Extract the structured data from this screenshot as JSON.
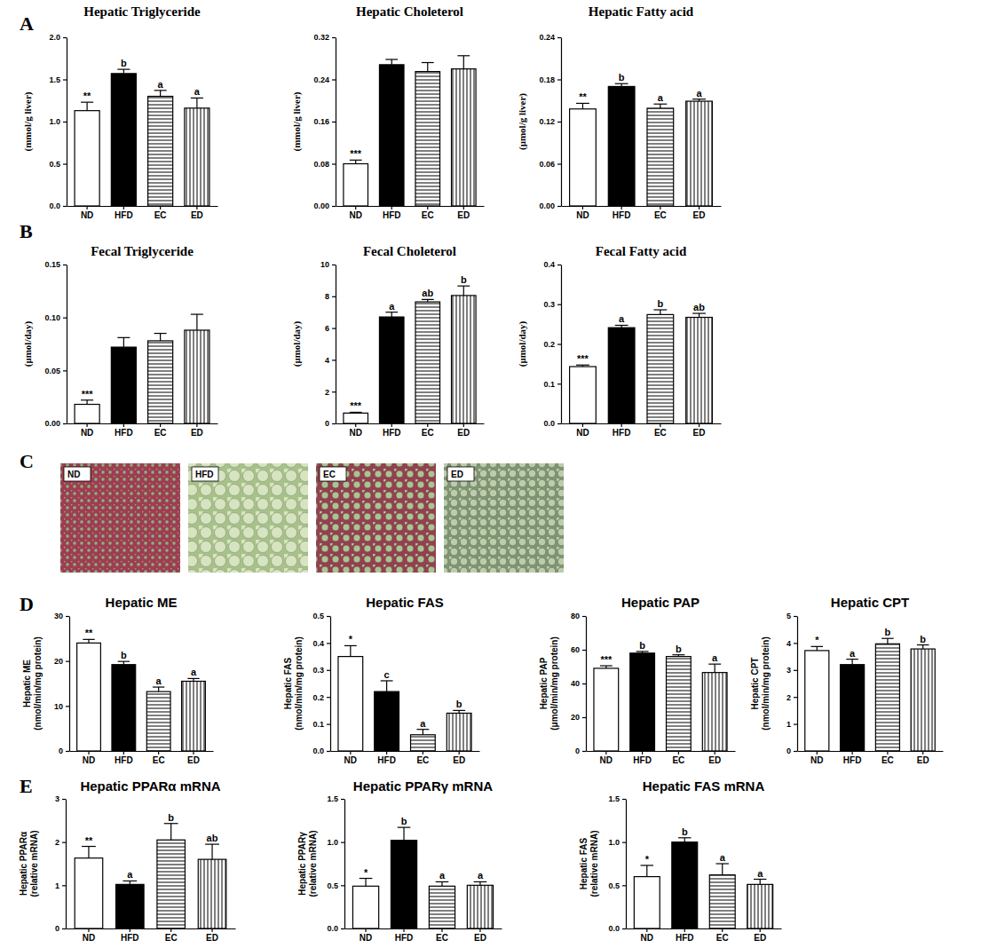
{
  "panels": [
    "A",
    "B",
    "C",
    "D",
    "E"
  ],
  "histology": {
    "labels": [
      "ND",
      "HFD",
      "EC",
      "ED"
    ]
  },
  "chart_data": [
    {
      "type": "bar",
      "title": "Hepatic Triglyceride",
      "ylabel": [
        "(mmol/g liver)"
      ],
      "categories": [
        "ND",
        "HFD",
        "EC",
        "ED"
      ],
      "values": [
        1.13,
        1.57,
        1.3,
        1.16
      ],
      "errors": [
        0.1,
        0.05,
        0.07,
        0.12
      ],
      "significance": [
        "**",
        "b",
        "a",
        "a"
      ],
      "colors": [
        "#ffffff",
        "#000000",
        "#ffffff",
        "#ffffff"
      ],
      "ylim": [
        0,
        2
      ],
      "yticks": [
        {
          "value": 0,
          "label": "0.0"
        },
        {
          "value": 0.5,
          "label": "0.5"
        },
        {
          "value": 1,
          "label": "1.0"
        },
        {
          "value": 1.5,
          "label": "1.5"
        },
        {
          "value": 2,
          "label": "2.0"
        }
      ]
    },
    {
      "type": "bar",
      "title": "Hepatic Choleterol",
      "ylabel": [
        "(mmol/g liver)"
      ],
      "categories": [
        "ND",
        "HFD",
        "EC",
        "ED"
      ],
      "values": [
        0.08,
        0.268,
        0.255,
        0.26
      ],
      "errors": [
        0.007,
        0.01,
        0.017,
        0.025
      ],
      "significance": [
        "***",
        null,
        null,
        null
      ],
      "colors": [
        "#ffffff",
        "#000000",
        "#ffffff",
        "#ffffff"
      ],
      "ylim": [
        0,
        0.32
      ],
      "yticks": [
        {
          "value": 0,
          "label": "0.00"
        },
        {
          "value": 0.08,
          "label": "0.08"
        },
        {
          "value": 0.16,
          "label": "0.16"
        },
        {
          "value": 0.24,
          "label": "0.24"
        },
        {
          "value": 0.32,
          "label": "0.32"
        }
      ]
    },
    {
      "type": "bar",
      "title": "Hepatic Fatty acid",
      "ylabel": [
        "(μmol/g liver)"
      ],
      "categories": [
        "ND",
        "HFD",
        "EC",
        "ED"
      ],
      "values": [
        0.138,
        0.17,
        0.139,
        0.149
      ],
      "errors": [
        0.008,
        0.004,
        0.006,
        0.003
      ],
      "significance": [
        "**",
        "b",
        "a",
        "a"
      ],
      "colors": [
        "#ffffff",
        "#000000",
        "#ffffff",
        "#ffffff"
      ],
      "ylim": [
        0,
        0.24
      ],
      "yticks": [
        {
          "value": 0,
          "label": "0.00"
        },
        {
          "value": 0.06,
          "label": "0.06"
        },
        {
          "value": 0.12,
          "label": "0.12"
        },
        {
          "value": 0.18,
          "label": "0.18"
        },
        {
          "value": 0.24,
          "label": "0.24"
        }
      ]
    },
    {
      "type": "bar",
      "title": "Fecal Triglyceride",
      "ylabel": [
        "(μmol/day)"
      ],
      "categories": [
        "ND",
        "HFD",
        "EC",
        "ED"
      ],
      "values": [
        0.018,
        0.072,
        0.078,
        0.088
      ],
      "errors": [
        0.004,
        0.009,
        0.007,
        0.015
      ],
      "significance": [
        "***",
        null,
        null,
        null
      ],
      "colors": [
        "#ffffff",
        "#000000",
        "#ffffff",
        "#ffffff"
      ],
      "ylim": [
        0,
        0.15
      ],
      "yticks": [
        {
          "value": 0,
          "label": "0.00"
        },
        {
          "value": 0.05,
          "label": "0.05"
        },
        {
          "value": 0.1,
          "label": "0.10"
        },
        {
          "value": 0.15,
          "label": "0.15"
        }
      ]
    },
    {
      "type": "bar",
      "title": "Fecal Choleterol",
      "ylabel": [
        "(μmol/day)"
      ],
      "categories": [
        "ND",
        "HFD",
        "EC",
        "ED"
      ],
      "values": [
        0.65,
        6.7,
        7.65,
        8.05
      ],
      "errors": [
        0.05,
        0.3,
        0.15,
        0.6
      ],
      "significance": [
        "***",
        "a",
        "ab",
        "b"
      ],
      "colors": [
        "#ffffff",
        "#000000",
        "#ffffff",
        "#ffffff"
      ],
      "ylim": [
        0,
        10
      ],
      "yticks": [
        0,
        2,
        4,
        6,
        8,
        10
      ]
    },
    {
      "type": "bar",
      "title": "Fecal Fatty acid",
      "ylabel": [
        "(μmol/day)"
      ],
      "categories": [
        "ND",
        "HFD",
        "EC",
        "ED"
      ],
      "values": [
        0.143,
        0.241,
        0.274,
        0.267
      ],
      "errors": [
        0.004,
        0.006,
        0.012,
        0.01
      ],
      "significance": [
        "***",
        "a",
        "b",
        "ab"
      ],
      "colors": [
        "#ffffff",
        "#000000",
        "#ffffff",
        "#ffffff"
      ],
      "ylim": [
        0,
        0.4
      ],
      "yticks": [
        {
          "value": 0,
          "label": "0.0"
        },
        {
          "value": 0.1,
          "label": "0.1"
        },
        {
          "value": 0.2,
          "label": "0.2"
        },
        {
          "value": 0.3,
          "label": "0.3"
        },
        {
          "value": 0.4,
          "label": "0.4"
        }
      ]
    },
    {
      "type": "bar",
      "title": "Hepatic ME",
      "ylabel": [
        "Hepatic ME",
        "(nmol/min/mg protein)"
      ],
      "categories": [
        "ND",
        "HFD",
        "EC",
        "ED"
      ],
      "values": [
        24,
        19.2,
        13.2,
        15.5
      ],
      "errors": [
        0.8,
        0.7,
        1,
        0.6
      ],
      "significance": [
        "**",
        "b",
        "a",
        "a"
      ],
      "colors": [
        "#ffffff",
        "#000000",
        "#ffffff",
        "#ffffff"
      ],
      "ylim": [
        0,
        30
      ],
      "yticks": [
        0,
        10,
        20,
        30
      ]
    },
    {
      "type": "bar",
      "title": "Hepatic FAS",
      "ylabel": [
        "Hepatic FAS",
        "(nmol/min/mg protein)"
      ],
      "categories": [
        "ND",
        "HFD",
        "EC",
        "ED"
      ],
      "values": [
        0.35,
        0.22,
        0.06,
        0.14
      ],
      "errors": [
        0.04,
        0.04,
        0.02,
        0.01
      ],
      "significance": [
        "*",
        "c",
        "a",
        "b"
      ],
      "colors": [
        "#ffffff",
        "#000000",
        "#ffffff",
        "#ffffff"
      ],
      "ylim": [
        0,
        0.5
      ],
      "yticks": [
        {
          "value": 0,
          "label": "0.0"
        },
        {
          "value": 0.1,
          "label": "0.1"
        },
        {
          "value": 0.2,
          "label": "0.2"
        },
        {
          "value": 0.3,
          "label": "0.3"
        },
        {
          "value": 0.4,
          "label": "0.4"
        },
        {
          "value": 0.5,
          "label": "0.5"
        }
      ]
    },
    {
      "type": "bar",
      "title": "Hepatic PAP",
      "ylabel": [
        "Hepatic PAP",
        "(μmol/min/mg protein)"
      ],
      "categories": [
        "ND",
        "HFD",
        "EC",
        "ED"
      ],
      "values": [
        49,
        58,
        56,
        46.5
      ],
      "errors": [
        1.5,
        1,
        1,
        5
      ],
      "significance": [
        "***",
        "b",
        "b",
        "a"
      ],
      "colors": [
        "#ffffff",
        "#000000",
        "#ffffff",
        "#ffffff"
      ],
      "ylim": [
        0,
        80
      ],
      "yticks": [
        0,
        20,
        40,
        60,
        80
      ]
    },
    {
      "type": "bar",
      "title": "Hepatic CPT",
      "ylabel": [
        "Hepatic CPT",
        "(nmol/min/mg protein)"
      ],
      "categories": [
        "ND",
        "HFD",
        "EC",
        "ED"
      ],
      "values": [
        3.72,
        3.2,
        3.97,
        3.78
      ],
      "errors": [
        0.15,
        0.2,
        0.2,
        0.15
      ],
      "significance": [
        "*",
        "a",
        "b",
        "b"
      ],
      "colors": [
        "#ffffff",
        "#000000",
        "#ffffff",
        "#ffffff"
      ],
      "ylim": [
        0,
        5
      ],
      "yticks": [
        0,
        1,
        2,
        3,
        4,
        5
      ]
    },
    {
      "type": "bar",
      "title": "Hepatic PPARα mRNA",
      "ylabel": [
        "Hepatic PPARα",
        "(relative mRNA)"
      ],
      "categories": [
        "ND",
        "HFD",
        "EC",
        "ED"
      ],
      "values": [
        1.63,
        1.02,
        2.05,
        1.6
      ],
      "errors": [
        0.27,
        0.08,
        0.38,
        0.35
      ],
      "significance": [
        "**",
        "a",
        "b",
        "ab"
      ],
      "colors": [
        "#ffffff",
        "#000000",
        "#ffffff",
        "#ffffff"
      ],
      "ylim": [
        0,
        3
      ],
      "yticks": [
        0,
        1,
        2,
        3
      ]
    },
    {
      "type": "bar",
      "title": "Hepatic PPARγ mRNA",
      "ylabel": [
        "Hepatic PPARγ",
        "(relative mRNA)"
      ],
      "categories": [
        "ND",
        "HFD",
        "EC",
        "ED"
      ],
      "values": [
        0.49,
        1.02,
        0.49,
        0.5
      ],
      "errors": [
        0.09,
        0.15,
        0.05,
        0.04
      ],
      "significance": [
        "*",
        "b",
        "a",
        "a"
      ],
      "colors": [
        "#ffffff",
        "#000000",
        "#ffffff",
        "#ffffff"
      ],
      "ylim": [
        0,
        1.5
      ],
      "yticks": [
        {
          "value": 0,
          "label": "0.0"
        },
        {
          "value": 0.5,
          "label": "0.5"
        },
        {
          "value": 1,
          "label": "1.0"
        },
        {
          "value": 1.5,
          "label": "1.5"
        }
      ]
    },
    {
      "type": "bar",
      "title": "Hepatic FAS mRNA",
      "ylabel": [
        "Hepatic FAS",
        "(relative mRNA)"
      ],
      "categories": [
        "ND",
        "HFD",
        "EC",
        "ED"
      ],
      "values": [
        0.6,
        1.0,
        0.62,
        0.51
      ],
      "errors": [
        0.13,
        0.05,
        0.13,
        0.06
      ],
      "significance": [
        "*",
        "b",
        "a",
        "a"
      ],
      "colors": [
        "#ffffff",
        "#000000",
        "#ffffff",
        "#ffffff"
      ],
      "ylim": [
        0,
        1.5
      ],
      "yticks": [
        {
          "value": 0,
          "label": "0.0"
        },
        {
          "value": 0.5,
          "label": "0.5"
        },
        {
          "value": 1,
          "label": "1.0"
        },
        {
          "value": 1.5,
          "label": "1.5"
        }
      ]
    }
  ]
}
